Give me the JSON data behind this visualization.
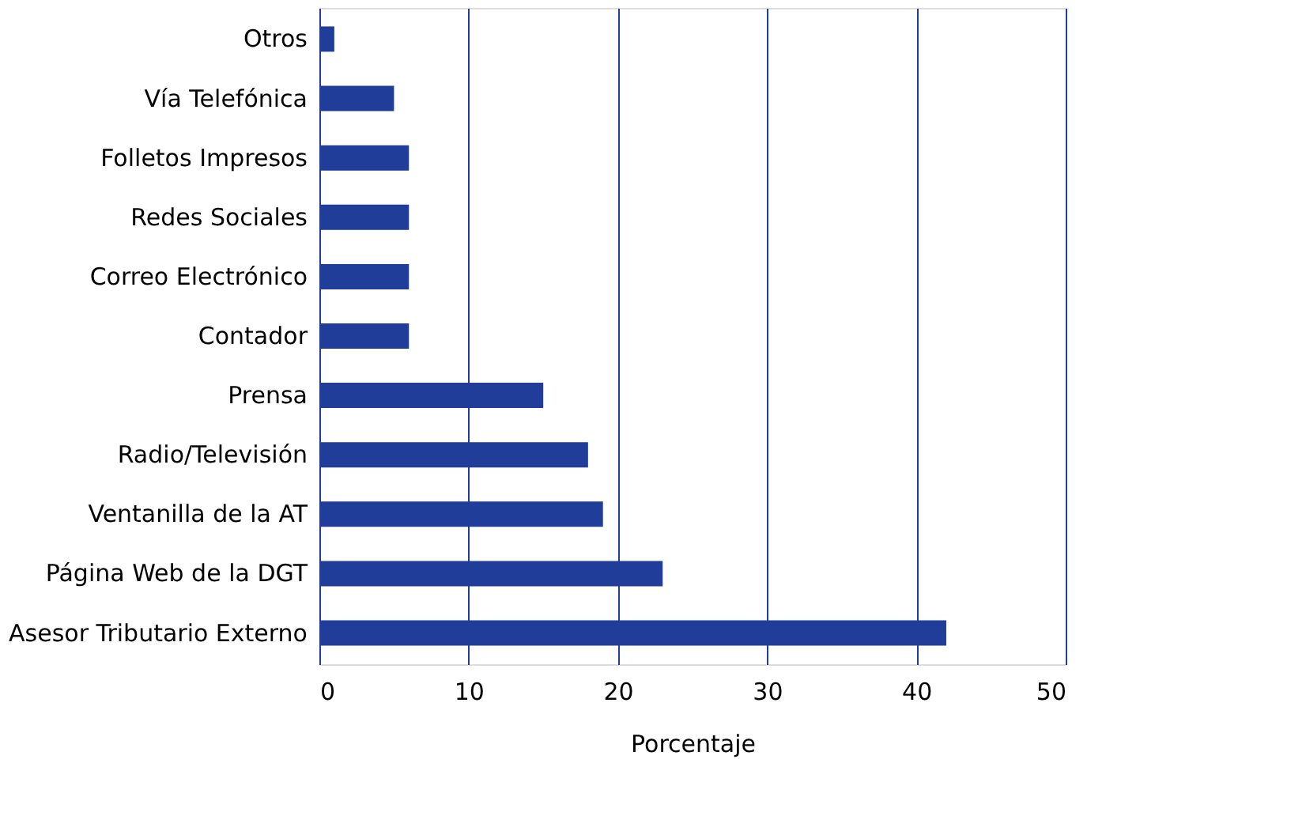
{
  "chart_data": {
    "type": "bar",
    "orientation": "horizontal",
    "xlabel": "Porcentaje",
    "categories": [
      "Otros",
      "Vía Telefónica",
      "Folletos Impresos",
      "Redes Sociales",
      "Correo Electrónico",
      "Contador",
      "Prensa",
      "Radio/Televisión",
      "Ventanilla de la AT",
      "Página Web de la DGT",
      "Asesor Tributario Externo"
    ],
    "values": [
      1,
      5,
      6,
      6,
      6,
      6,
      15,
      18,
      19,
      23,
      42
    ],
    "color": "#1f3d99",
    "xlim": [
      0,
      50
    ],
    "xticks": [
      0,
      10,
      20,
      30,
      40,
      50
    ],
    "grid": "x"
  }
}
